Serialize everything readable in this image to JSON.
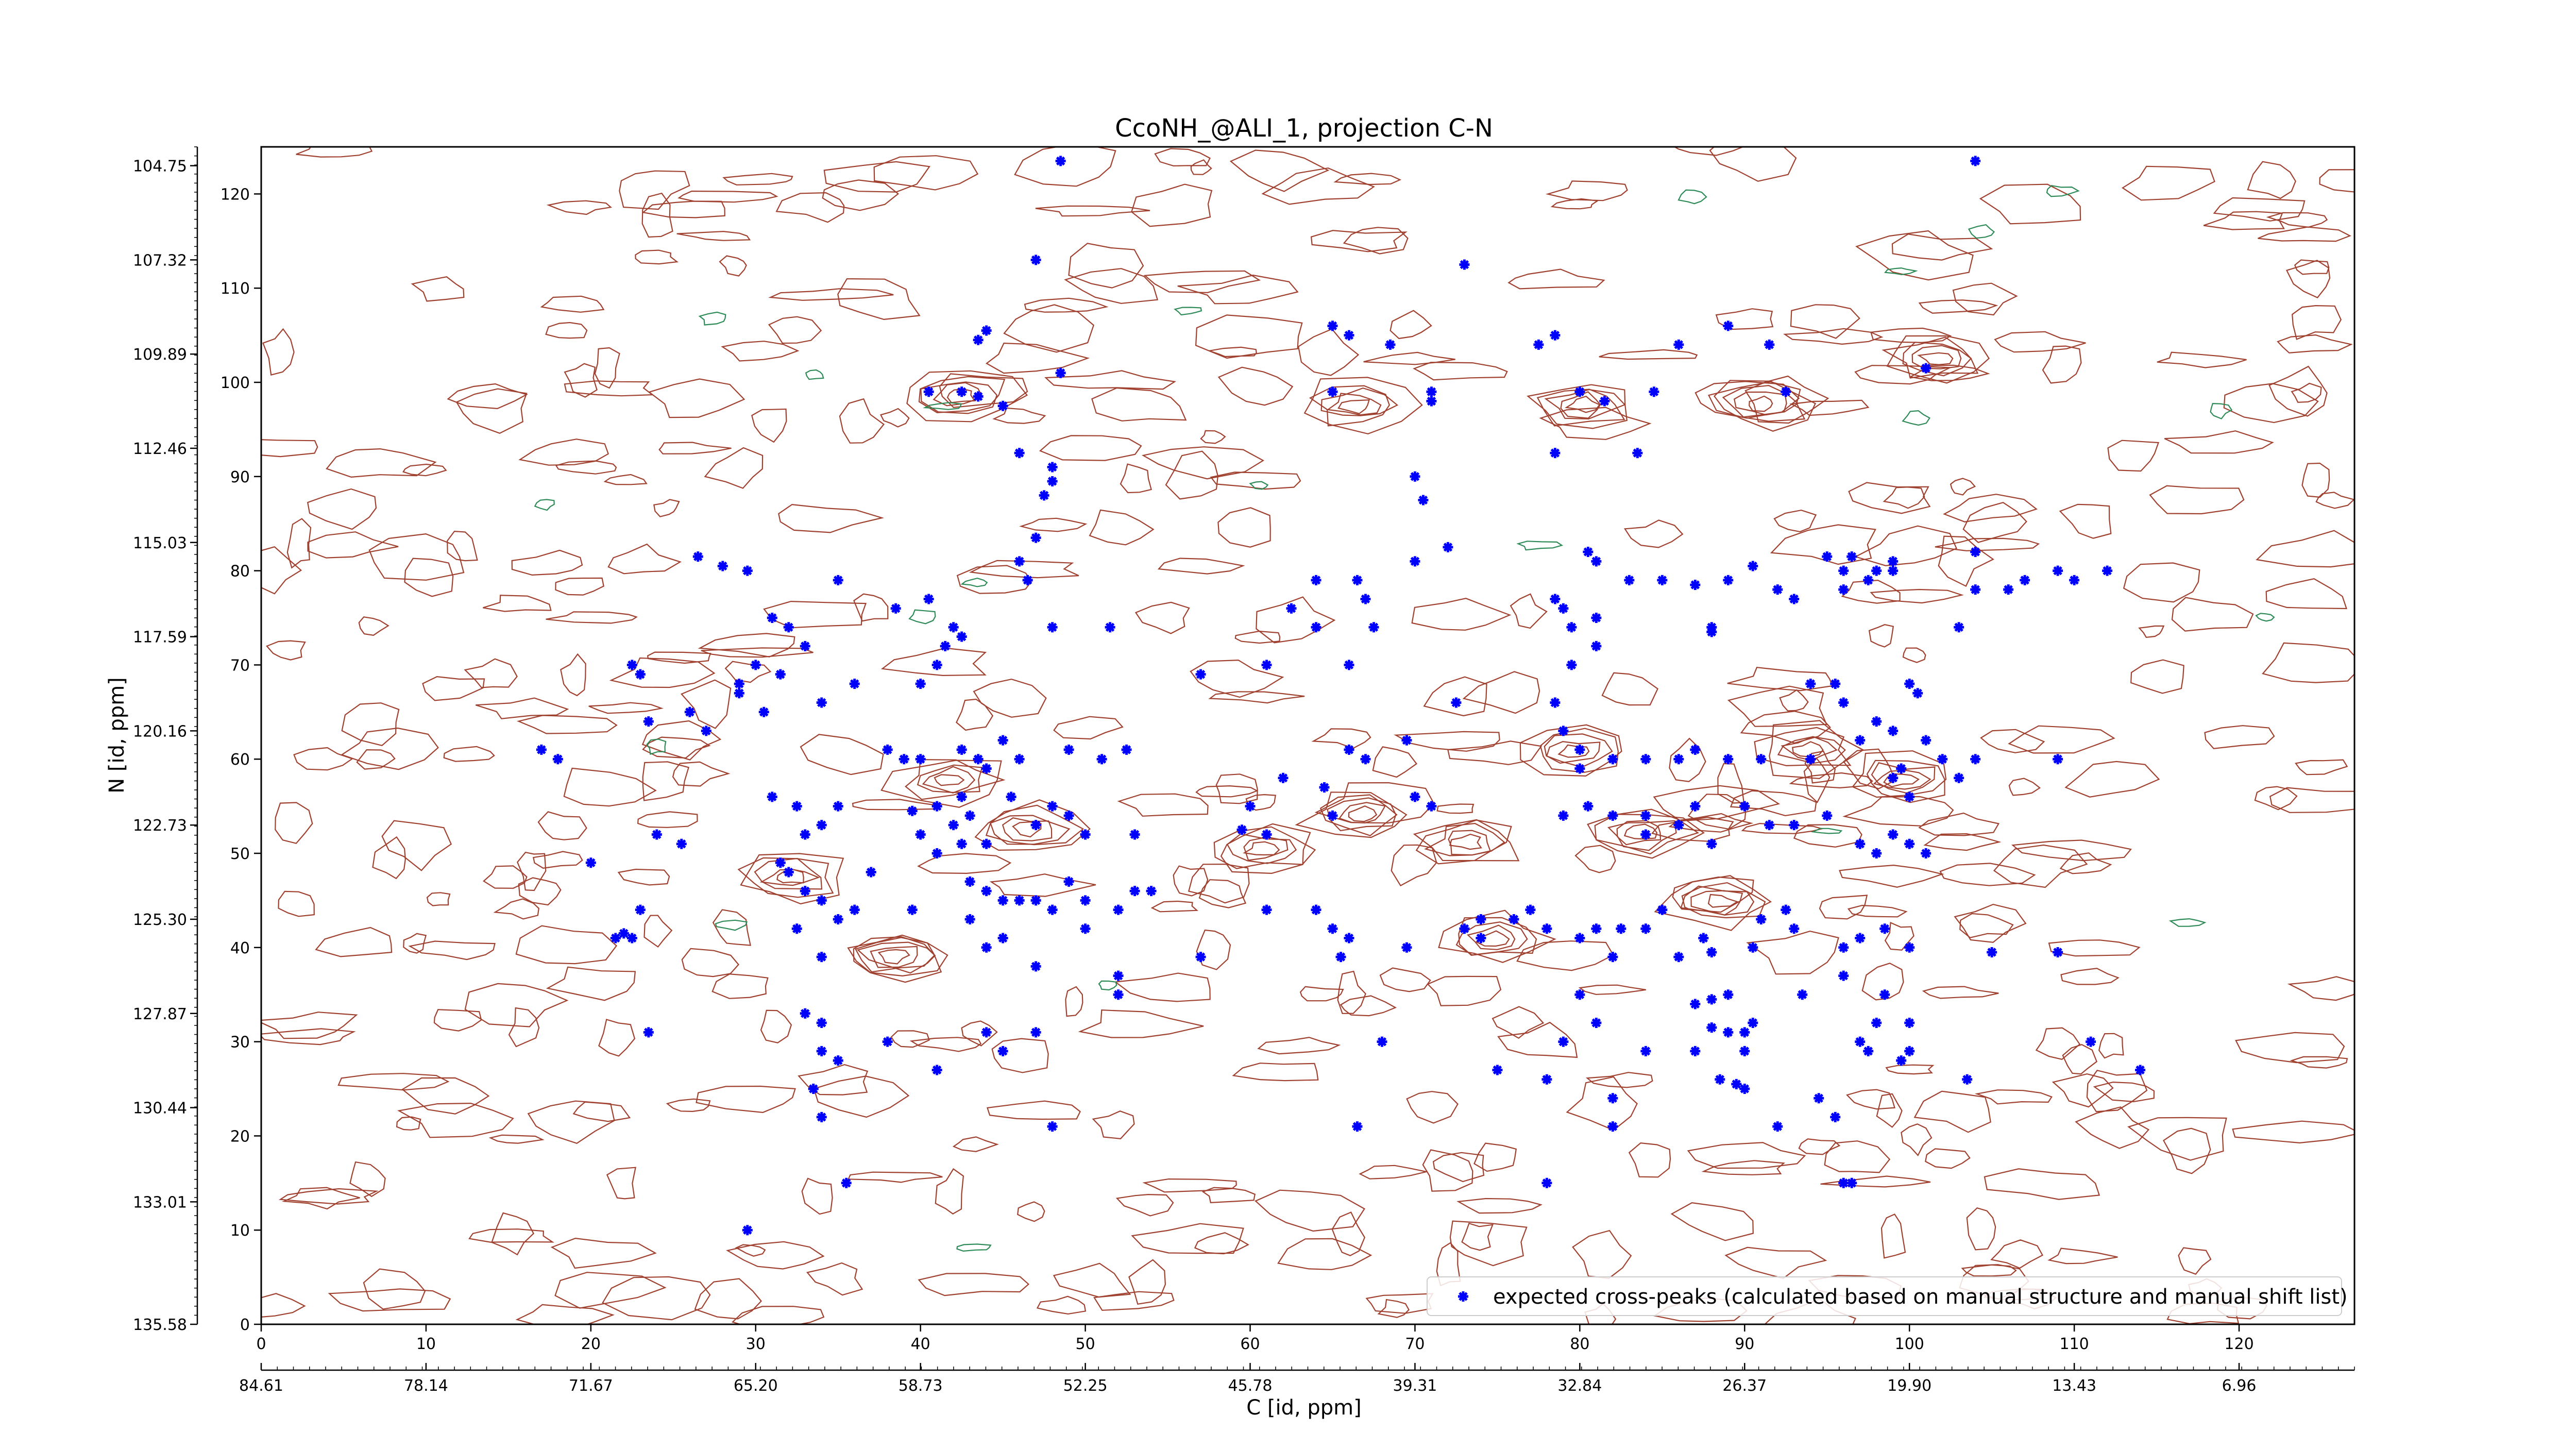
{
  "chart_data": {
    "type": "scatter",
    "title": "CcoNH_@ALI_1, projection C-N",
    "xlabel": "C [id, ppm]",
    "ylabel": "N [id, ppm]",
    "xlim": [
      0,
      127
    ],
    "ylim": [
      0,
      125
    ],
    "x_index_ticks": [
      0,
      10,
      20,
      30,
      40,
      50,
      60,
      70,
      80,
      90,
      100,
      110,
      120
    ],
    "y_index_ticks": [
      0,
      10,
      20,
      30,
      40,
      50,
      60,
      70,
      80,
      90,
      100,
      110,
      120
    ],
    "x_ppm_ticks": [
      "84.61",
      "78.14",
      "71.67",
      "65.20",
      "58.73",
      "52.25",
      "45.78",
      "39.31",
      "32.84",
      "26.37",
      "19.90",
      "13.43",
      "6.96"
    ],
    "y_ppm_ticks": [
      "135.58",
      "133.01",
      "130.44",
      "127.87",
      "125.30",
      "122.73",
      "120.16",
      "117.59",
      "115.03",
      "112.46",
      "109.89",
      "107.32",
      "104.75"
    ],
    "grid": false,
    "legend": {
      "position": "bottom-right",
      "entries": [
        "expected cross-peaks (calculated based on manual structure and manual shift list)"
      ]
    },
    "colors": {
      "contour_positive": "#a0402f",
      "contour_negative": "#2e8b57",
      "points": "#0000ff"
    },
    "series": [
      {
        "name": "expected cross-peaks (calculated based on manual structure and manual shift list)",
        "points": [
          [
            48.5,
            123.5
          ],
          [
            104,
            123.5
          ],
          [
            47,
            113
          ],
          [
            73,
            112.5
          ],
          [
            44,
            105.5
          ],
          [
            43.5,
            104.5
          ],
          [
            48.5,
            101
          ],
          [
            40.5,
            99
          ],
          [
            42.5,
            99
          ],
          [
            43.5,
            98.5
          ],
          [
            45,
            97.5
          ],
          [
            65,
            106
          ],
          [
            66,
            105
          ],
          [
            68.5,
            104
          ],
          [
            65,
            99
          ],
          [
            71,
            99
          ],
          [
            71,
            98
          ],
          [
            77.5,
            104
          ],
          [
            78.5,
            105
          ],
          [
            80,
            99
          ],
          [
            81.5,
            98
          ],
          [
            84.5,
            99
          ],
          [
            86,
            104
          ],
          [
            89,
            106
          ],
          [
            91.5,
            104
          ],
          [
            92.5,
            99
          ],
          [
            101,
            101.5
          ],
          [
            46,
            92.5
          ],
          [
            48,
            91
          ],
          [
            48,
            89.5
          ],
          [
            47.5,
            88
          ],
          [
            47,
            83.5
          ],
          [
            46.5,
            79
          ],
          [
            70,
            90
          ],
          [
            70.5,
            87.5
          ],
          [
            72,
            82.5
          ],
          [
            78.5,
            92.5
          ],
          [
            83.5,
            92.5
          ],
          [
            26.5,
            81.5
          ],
          [
            28,
            80.5
          ],
          [
            29.5,
            80
          ],
          [
            35,
            79
          ],
          [
            38.5,
            76
          ],
          [
            40.5,
            77
          ],
          [
            42,
            74
          ],
          [
            41.5,
            72
          ],
          [
            42.5,
            73
          ],
          [
            41,
            70
          ],
          [
            40,
            68
          ],
          [
            36,
            68
          ],
          [
            34,
            66
          ],
          [
            33,
            72
          ],
          [
            32,
            74
          ],
          [
            31,
            75
          ],
          [
            30,
            70
          ],
          [
            29,
            68
          ],
          [
            31.5,
            69
          ],
          [
            30.5,
            65
          ],
          [
            29,
            67
          ],
          [
            23,
            69
          ],
          [
            22.5,
            70
          ],
          [
            26,
            65
          ],
          [
            23.5,
            64
          ],
          [
            27,
            63
          ],
          [
            17,
            61
          ],
          [
            18,
            60
          ],
          [
            38,
            61
          ],
          [
            39,
            60
          ],
          [
            40,
            60
          ],
          [
            42.5,
            61
          ],
          [
            43.5,
            60
          ],
          [
            44,
            59
          ],
          [
            45,
            62
          ],
          [
            46,
            60
          ],
          [
            49,
            61
          ],
          [
            51,
            60
          ],
          [
            52.5,
            61
          ],
          [
            46,
            81
          ],
          [
            48,
            74
          ],
          [
            51.5,
            74
          ],
          [
            57,
            69
          ],
          [
            61,
            70
          ],
          [
            64,
            79
          ],
          [
            66.5,
            79
          ],
          [
            62.5,
            76
          ],
          [
            64,
            74
          ],
          [
            66,
            70
          ],
          [
            67,
            77
          ],
          [
            67.5,
            74
          ],
          [
            70,
            81
          ],
          [
            69.5,
            62
          ],
          [
            66,
            61
          ],
          [
            67,
            60
          ],
          [
            62,
            58
          ],
          [
            64.5,
            57
          ],
          [
            59.5,
            52.5
          ],
          [
            60,
            55
          ],
          [
            61,
            52
          ],
          [
            65,
            54
          ],
          [
            70,
            56
          ],
          [
            71,
            55
          ],
          [
            72.5,
            66
          ],
          [
            78.5,
            77
          ],
          [
            79,
            76
          ],
          [
            79.5,
            74
          ],
          [
            81,
            75
          ],
          [
            79.5,
            70
          ],
          [
            81,
            72
          ],
          [
            80.5,
            82
          ],
          [
            81,
            81
          ],
          [
            83,
            79
          ],
          [
            85,
            79
          ],
          [
            87,
            78.5
          ],
          [
            89,
            79
          ],
          [
            88,
            74
          ],
          [
            88,
            73.5
          ],
          [
            90.5,
            80.5
          ],
          [
            92,
            78
          ],
          [
            93,
            77
          ],
          [
            95,
            81.5
          ],
          [
            96,
            80
          ],
          [
            96.5,
            81.5
          ],
          [
            96,
            78
          ],
          [
            97.5,
            79
          ],
          [
            98,
            80
          ],
          [
            99,
            81
          ],
          [
            99,
            80
          ],
          [
            94,
            68
          ],
          [
            95.5,
            68
          ],
          [
            96,
            66
          ],
          [
            98,
            64
          ],
          [
            100,
            68
          ],
          [
            100.5,
            67
          ],
          [
            99,
            63
          ],
          [
            101,
            62
          ],
          [
            97,
            62
          ],
          [
            103,
            74
          ],
          [
            104,
            78
          ],
          [
            104,
            82
          ],
          [
            106,
            78
          ],
          [
            107,
            79
          ],
          [
            110,
            79
          ],
          [
            109,
            80
          ],
          [
            112,
            80
          ],
          [
            109,
            60
          ],
          [
            79,
            63
          ],
          [
            78.5,
            66
          ],
          [
            80,
            61
          ],
          [
            80,
            59
          ],
          [
            82,
            60
          ],
          [
            84,
            60
          ],
          [
            86,
            60
          ],
          [
            87,
            61
          ],
          [
            89,
            60
          ],
          [
            91,
            60
          ],
          [
            94,
            60
          ],
          [
            99,
            58
          ],
          [
            99.5,
            59
          ],
          [
            103,
            58
          ],
          [
            102,
            60
          ],
          [
            104,
            60
          ],
          [
            100,
            56
          ],
          [
            79,
            54
          ],
          [
            80.5,
            55
          ],
          [
            82,
            54
          ],
          [
            84,
            52
          ],
          [
            84,
            54
          ],
          [
            86,
            53
          ],
          [
            87,
            55
          ],
          [
            88,
            51
          ],
          [
            90,
            55
          ],
          [
            91.5,
            53
          ],
          [
            93,
            53
          ],
          [
            95,
            54
          ],
          [
            97,
            51
          ],
          [
            98,
            50
          ],
          [
            99,
            52
          ],
          [
            100,
            51
          ],
          [
            101,
            50
          ],
          [
            31,
            56
          ],
          [
            32.5,
            55
          ],
          [
            34,
            53
          ],
          [
            35,
            55
          ],
          [
            33,
            52
          ],
          [
            31.5,
            49
          ],
          [
            32,
            48
          ],
          [
            33,
            46
          ],
          [
            34,
            45
          ],
          [
            35,
            43
          ],
          [
            36,
            44
          ],
          [
            37,
            48
          ],
          [
            41,
            55
          ],
          [
            42,
            53
          ],
          [
            43,
            54
          ],
          [
            44,
            51
          ],
          [
            42.5,
            51
          ],
          [
            41,
            50
          ],
          [
            40,
            52
          ],
          [
            43,
            47
          ],
          [
            44,
            46
          ],
          [
            45,
            45
          ],
          [
            46,
            45
          ],
          [
            47,
            45
          ],
          [
            48,
            44
          ],
          [
            50,
            45
          ],
          [
            52,
            44
          ],
          [
            53,
            46
          ],
          [
            47,
            53
          ],
          [
            48,
            55
          ],
          [
            49,
            54
          ],
          [
            50,
            52
          ],
          [
            53,
            52
          ],
          [
            45.5,
            56
          ],
          [
            42.5,
            56
          ],
          [
            39.5,
            54.5
          ],
          [
            33,
            33
          ],
          [
            34,
            32
          ],
          [
            34,
            29
          ],
          [
            35,
            28
          ],
          [
            38,
            30
          ],
          [
            41,
            27
          ],
          [
            44,
            31
          ],
          [
            45,
            29
          ],
          [
            47,
            31
          ],
          [
            52,
            35
          ],
          [
            48,
            21
          ],
          [
            23.5,
            31
          ],
          [
            21.5,
            41
          ],
          [
            22,
            41.5
          ],
          [
            23,
            44
          ],
          [
            20,
            49
          ],
          [
            24,
            52
          ],
          [
            25.5,
            51
          ],
          [
            29.5,
            10
          ],
          [
            33.5,
            25
          ],
          [
            34,
            22
          ],
          [
            35.5,
            15
          ],
          [
            22.5,
            41
          ],
          [
            32.5,
            42
          ],
          [
            34,
            39
          ],
          [
            39.5,
            44
          ],
          [
            43,
            43
          ],
          [
            44,
            40
          ],
          [
            45,
            41
          ],
          [
            47,
            38
          ],
          [
            50,
            42
          ],
          [
            52,
            37
          ],
          [
            57,
            39
          ],
          [
            61,
            44
          ],
          [
            64,
            44
          ],
          [
            65,
            42
          ],
          [
            66,
            41
          ],
          [
            65.5,
            39
          ],
          [
            69.5,
            40
          ],
          [
            73,
            42
          ],
          [
            74,
            43
          ],
          [
            76,
            43
          ],
          [
            77,
            44
          ],
          [
            78,
            42
          ],
          [
            80,
            41
          ],
          [
            81,
            42
          ],
          [
            82.5,
            42
          ],
          [
            82,
            39
          ],
          [
            84,
            42
          ],
          [
            85,
            44
          ],
          [
            86,
            39
          ],
          [
            87.5,
            41
          ],
          [
            88,
            39.5
          ],
          [
            90.5,
            40
          ],
          [
            91,
            43
          ],
          [
            92.5,
            44
          ],
          [
            93,
            42
          ],
          [
            96,
            40
          ],
          [
            97,
            41
          ],
          [
            98.5,
            42
          ],
          [
            100,
            40
          ],
          [
            105,
            39.5
          ],
          [
            109,
            39.5
          ],
          [
            74,
            41
          ],
          [
            75,
            27
          ],
          [
            78,
            26
          ],
          [
            78,
            15
          ],
          [
            79,
            30
          ],
          [
            80,
            35
          ],
          [
            81,
            32
          ],
          [
            82,
            24
          ],
          [
            82,
            21
          ],
          [
            84,
            29
          ],
          [
            87,
            29
          ],
          [
            87,
            34
          ],
          [
            89,
            31
          ],
          [
            89,
            35
          ],
          [
            90,
            29
          ],
          [
            90.5,
            32
          ],
          [
            88,
            31.5
          ],
          [
            88,
            34.5
          ],
          [
            90,
            25
          ],
          [
            88.5,
            26
          ],
          [
            89.5,
            25.5
          ],
          [
            90,
            31
          ],
          [
            93.5,
            35
          ],
          [
            94.5,
            24
          ],
          [
            95.5,
            22
          ],
          [
            96,
            15
          ],
          [
            96.5,
            15
          ],
          [
            97.5,
            29
          ],
          [
            98.5,
            35
          ],
          [
            98,
            32
          ],
          [
            97,
            30
          ],
          [
            96,
            37
          ],
          [
            100,
            29
          ],
          [
            100,
            32
          ],
          [
            103.5,
            26
          ],
          [
            111,
            30
          ],
          [
            114,
            27
          ],
          [
            99.5,
            28
          ],
          [
            92,
            21
          ],
          [
            66.5,
            21
          ],
          [
            68,
            30
          ],
          [
            49,
            47
          ],
          [
            54,
            46
          ]
        ]
      }
    ]
  }
}
